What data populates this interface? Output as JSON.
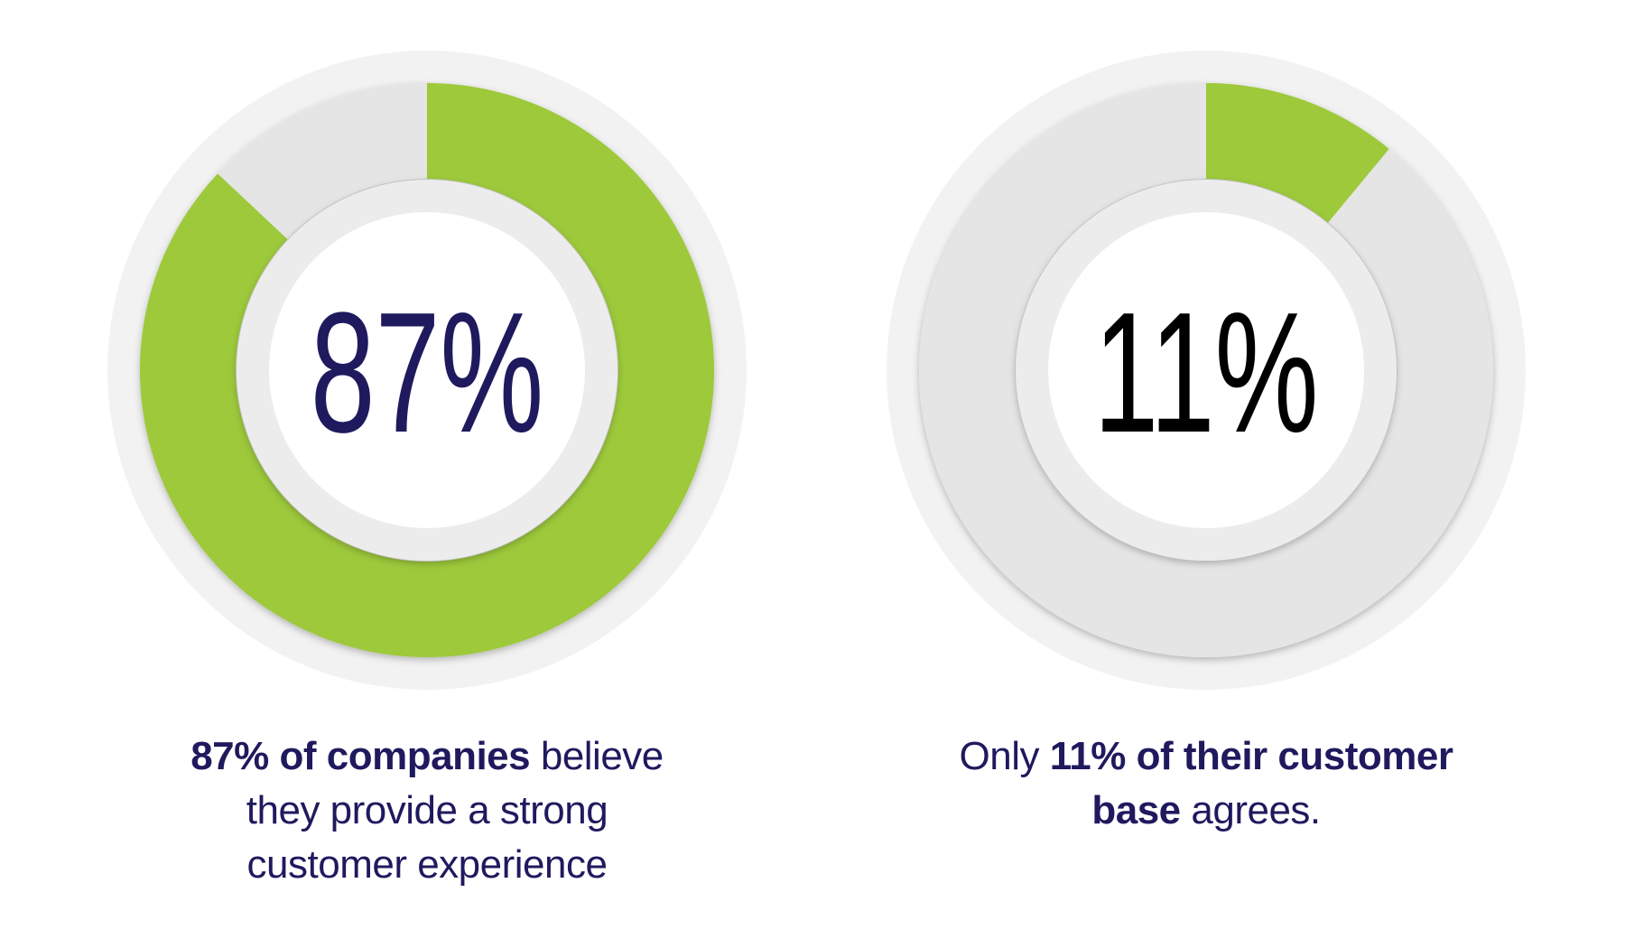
{
  "chart_data": [
    {
      "type": "donut",
      "values": [
        87,
        13
      ],
      "value_labels": [
        "87%",
        null
      ],
      "colors": [
        "#9dc93b",
        "#e5e5e5"
      ],
      "label_color": "#1f1a5e",
      "caption": [
        "87% of companies",
        "believe they provide a strong customer experience"
      ]
    },
    {
      "type": "donut",
      "values": [
        11,
        89
      ],
      "value_labels": [
        "11%",
        null
      ],
      "colors": [
        "#9dc93b",
        "#e5e5e5"
      ],
      "label_color": "#000000",
      "caption": [
        "Only",
        "11% of their customer base",
        "agrees."
      ]
    }
  ]
}
